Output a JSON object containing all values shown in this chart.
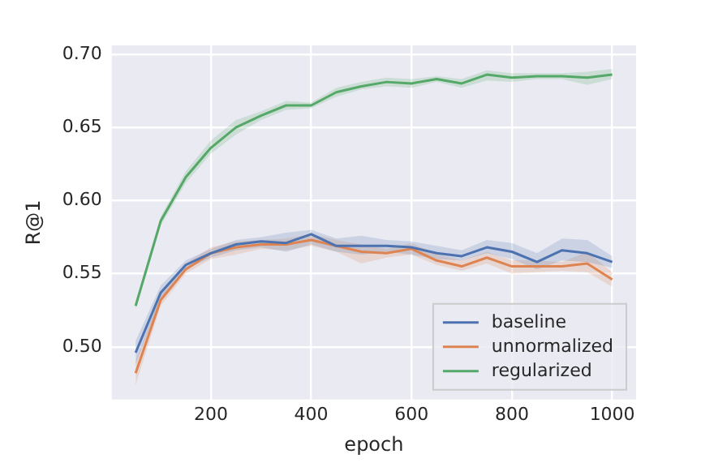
{
  "chart_data": {
    "type": "line",
    "xlabel": "epoch",
    "ylabel": "R@1",
    "x": [
      50,
      100,
      150,
      200,
      250,
      300,
      350,
      400,
      450,
      500,
      550,
      600,
      650,
      700,
      750,
      800,
      850,
      900,
      950,
      1000
    ],
    "series": [
      {
        "name": "baseline",
        "color": "#4c72b0",
        "values": [
          0.496,
          0.537,
          0.556,
          0.564,
          0.57,
          0.572,
          0.571,
          0.577,
          0.569,
          0.569,
          0.569,
          0.568,
          0.564,
          0.562,
          0.568,
          0.565,
          0.558,
          0.566,
          0.564,
          0.558
        ],
        "lower": [
          0.488,
          0.532,
          0.553,
          0.561,
          0.566,
          0.568,
          0.565,
          0.57,
          0.565,
          0.563,
          0.565,
          0.563,
          0.56,
          0.559,
          0.564,
          0.56,
          0.553,
          0.559,
          0.558,
          0.554
        ],
        "upper": [
          0.504,
          0.542,
          0.559,
          0.567,
          0.573,
          0.575,
          0.578,
          0.58,
          0.574,
          0.576,
          0.573,
          0.572,
          0.569,
          0.566,
          0.573,
          0.571,
          0.564,
          0.574,
          0.573,
          0.562
        ]
      },
      {
        "name": "unnormalized",
        "color": "#dd8452",
        "values": [
          0.482,
          0.532,
          0.553,
          0.564,
          0.568,
          0.57,
          0.57,
          0.573,
          0.569,
          0.565,
          0.564,
          0.567,
          0.559,
          0.555,
          0.561,
          0.555,
          0.555,
          0.555,
          0.557,
          0.546
        ],
        "lower": [
          0.474,
          0.528,
          0.55,
          0.56,
          0.563,
          0.567,
          0.566,
          0.569,
          0.565,
          0.557,
          0.561,
          0.563,
          0.556,
          0.552,
          0.557,
          0.55,
          0.551,
          0.552,
          0.551,
          0.541
        ],
        "upper": [
          0.49,
          0.536,
          0.557,
          0.568,
          0.572,
          0.573,
          0.574,
          0.577,
          0.573,
          0.57,
          0.567,
          0.571,
          0.563,
          0.559,
          0.565,
          0.559,
          0.559,
          0.558,
          0.565,
          0.551
        ]
      },
      {
        "name": "regularized",
        "color": "#55a868",
        "values": [
          0.528,
          0.586,
          0.616,
          0.636,
          0.65,
          0.658,
          0.665,
          0.665,
          0.674,
          0.678,
          0.681,
          0.68,
          0.683,
          0.68,
          0.686,
          0.684,
          0.685,
          0.685,
          0.684,
          0.686
        ],
        "lower": [
          0.526,
          0.583,
          0.612,
          0.632,
          0.645,
          0.655,
          0.662,
          0.663,
          0.671,
          0.676,
          0.678,
          0.677,
          0.681,
          0.677,
          0.682,
          0.681,
          0.683,
          0.683,
          0.679,
          0.683
        ],
        "upper": [
          0.53,
          0.589,
          0.62,
          0.641,
          0.655,
          0.661,
          0.668,
          0.667,
          0.677,
          0.681,
          0.684,
          0.683,
          0.685,
          0.683,
          0.689,
          0.687,
          0.687,
          0.687,
          0.688,
          0.69
        ]
      }
    ],
    "xlim": [
      2.5,
      1047.5
    ],
    "xticks": [
      200,
      400,
      600,
      800,
      1000
    ],
    "ylim": [
      0.464,
      0.706
    ],
    "yticks": [
      {
        "value": 0.5,
        "label": "0.50"
      },
      0.55,
      {
        "value": 0.6,
        "label": "0.60"
      },
      0.65,
      {
        "value": 0.7,
        "label": "0.70"
      }
    ],
    "grid": true,
    "legend": "bottom right",
    "marker": "none",
    "line_style": "solid"
  }
}
